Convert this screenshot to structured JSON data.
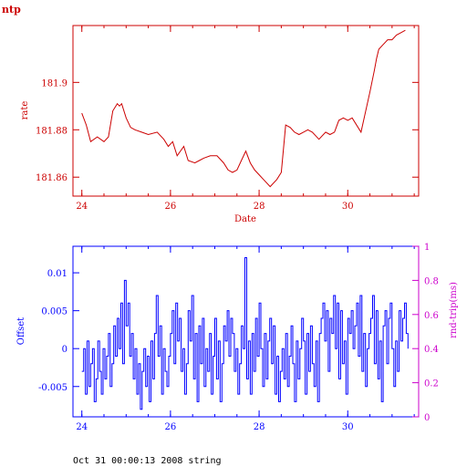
{
  "corner_label": "ntp",
  "footer": "Oct 31 00:00:13 2008 string",
  "chart_data": [
    {
      "type": "line",
      "title": "",
      "xlabel": "Date",
      "ylabel": "rate",
      "xlim": [
        23.8,
        31.6
      ],
      "ylim": [
        181.852,
        181.924
      ],
      "xticks": [
        24,
        26,
        28,
        30
      ],
      "xtick_labels": [
        "24",
        "26",
        "28",
        "30"
      ],
      "yticks": [
        181.86,
        181.88,
        181.9
      ],
      "ytick_labels": [
        "181.86",
        "181.88",
        "181.9"
      ],
      "grid": false,
      "color": "#cc0000",
      "series": [
        {
          "x": [
            24.0,
            24.1,
            24.2,
            24.35,
            24.5,
            24.6,
            24.7,
            24.8,
            24.85,
            24.9,
            25.0,
            25.1,
            25.2,
            25.35,
            25.5,
            25.7,
            25.85,
            25.95,
            26.05,
            26.15,
            26.3,
            26.4,
            26.55,
            26.65,
            26.75,
            26.9,
            27.05,
            27.2,
            27.3,
            27.4,
            27.5,
            27.6,
            27.7,
            27.8,
            27.9,
            28.0,
            28.1,
            28.25,
            28.4,
            28.5,
            28.55,
            28.6,
            28.7,
            28.8,
            28.9,
            29.0,
            29.1,
            29.2,
            29.35,
            29.5,
            29.6,
            29.7,
            29.8,
            29.9,
            30.0,
            30.1,
            30.3,
            30.5,
            30.6,
            30.65,
            30.7,
            30.8,
            30.9,
            31.0,
            31.1,
            31.2,
            31.3
          ],
          "y": [
            181.887,
            181.882,
            181.875,
            181.877,
            181.875,
            181.877,
            181.888,
            181.891,
            181.89,
            181.891,
            181.885,
            181.881,
            181.88,
            181.879,
            181.878,
            181.879,
            181.876,
            181.873,
            181.875,
            181.869,
            181.873,
            181.867,
            181.866,
            181.867,
            181.868,
            181.869,
            181.869,
            181.866,
            181.863,
            181.862,
            181.863,
            181.867,
            181.871,
            181.866,
            181.863,
            181.861,
            181.859,
            181.856,
            181.859,
            181.862,
            181.872,
            181.882,
            181.881,
            181.879,
            181.878,
            181.879,
            181.88,
            181.879,
            181.876,
            181.879,
            181.878,
            181.879,
            181.884,
            181.885,
            181.884,
            181.885,
            181.879,
            181.896,
            181.905,
            181.91,
            181.914,
            181.916,
            181.918,
            181.918,
            181.92,
            181.921,
            181.922
          ]
        }
      ]
    },
    {
      "type": "line",
      "title": "",
      "xlabel": "",
      "ylabel": "Offset",
      "y2label": "rnd-trip(ms)",
      "xlim": [
        23.8,
        31.6
      ],
      "ylim": [
        -0.009,
        0.0135
      ],
      "y2lim": [
        0,
        1
      ],
      "xticks": [
        24,
        26,
        28,
        30
      ],
      "xtick_labels": [
        "24",
        "26",
        "28",
        "30"
      ],
      "yticks": [
        -0.005,
        0,
        0.005,
        0.01
      ],
      "ytick_labels": [
        "-0.005",
        "0",
        "0.005",
        "0.01"
      ],
      "y2ticks": [
        0,
        0.2,
        0.4,
        0.6,
        0.8,
        1
      ],
      "y2tick_labels": [
        "0",
        "0.2",
        "0.4",
        "0.6",
        "0.8",
        "1"
      ],
      "grid": false,
      "color": "#0000ff",
      "y2color": "#cc00cc",
      "series": [
        {
          "x_start": 24.0,
          "x_step": 0.04,
          "y": [
            -0.003,
            0.0,
            -0.006,
            0.001,
            -0.005,
            -0.002,
            0.0,
            -0.007,
            -0.004,
            0.001,
            -0.003,
            -0.006,
            0.0,
            -0.004,
            -0.001,
            0.002,
            -0.005,
            -0.002,
            0.003,
            -0.001,
            0.004,
            0.0,
            0.006,
            -0.002,
            0.009,
            0.003,
            0.006,
            -0.001,
            0.002,
            -0.004,
            0.0,
            -0.006,
            -0.002,
            -0.008,
            -0.003,
            0.0,
            -0.005,
            -0.001,
            -0.007,
            0.001,
            -0.004,
            0.002,
            0.007,
            -0.001,
            0.003,
            -0.006,
            0.0,
            -0.003,
            -0.005,
            -0.001,
            0.002,
            0.005,
            -0.002,
            0.006,
            0.001,
            0.004,
            -0.003,
            0.0,
            -0.006,
            -0.002,
            0.005,
            0.001,
            0.007,
            -0.004,
            0.002,
            -0.007,
            0.003,
            -0.002,
            0.004,
            -0.005,
            0.0,
            -0.003,
            0.002,
            -0.006,
            -0.001,
            0.004,
            -0.004,
            0.001,
            -0.007,
            -0.002,
            0.003,
            0.001,
            0.005,
            -0.001,
            0.004,
            0.002,
            -0.003,
            0.0,
            -0.006,
            -0.002,
            0.003,
            0.0,
            0.012,
            -0.004,
            0.001,
            -0.006,
            0.002,
            -0.003,
            0.004,
            -0.001,
            0.006,
            0.0,
            -0.005,
            0.002,
            -0.004,
            0.001,
            0.004,
            -0.002,
            0.003,
            -0.006,
            -0.001,
            -0.007,
            -0.003,
            0.0,
            -0.004,
            0.002,
            -0.005,
            -0.001,
            0.003,
            -0.002,
            -0.007,
            0.001,
            -0.004,
            0.0,
            0.004,
            0.001,
            -0.006,
            0.002,
            -0.003,
            0.003,
            -0.002,
            -0.005,
            0.001,
            -0.007,
            0.002,
            0.004,
            0.006,
            0.001,
            0.005,
            -0.003,
            0.004,
            0.002,
            0.007,
            0.0,
            0.006,
            -0.004,
            0.005,
            -0.002,
            0.001,
            -0.006,
            0.004,
            0.002,
            0.005,
            0.0,
            0.003,
            0.006,
            -0.001,
            0.007,
            -0.003,
            0.002,
            -0.005,
            0.0,
            0.002,
            0.004,
            0.007,
            -0.002,
            0.005,
            -0.004,
            0.001,
            -0.007,
            0.003,
            0.005,
            -0.002,
            0.004,
            0.006,
            0.0,
            -0.005,
            0.001,
            -0.003,
            0.005,
            0.001,
            0.004,
            0.006,
            0.002,
            0.0
          ]
        },
        {
          "name": "",
          "axis": "y2",
          "x": [],
          "y": []
        }
      ]
    }
  ]
}
